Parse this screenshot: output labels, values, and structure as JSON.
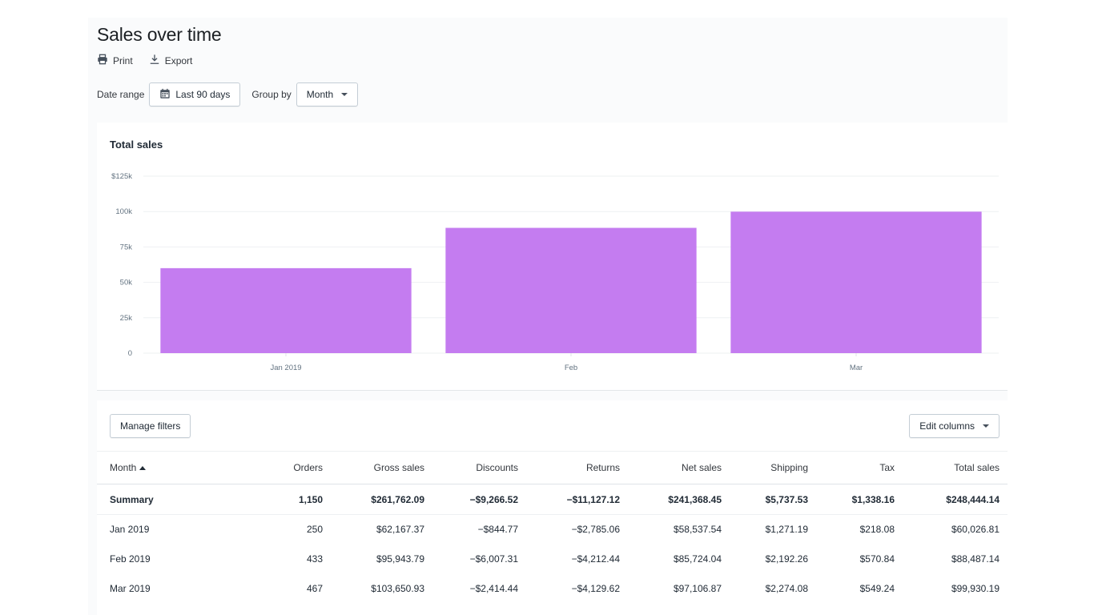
{
  "header": {
    "title": "Sales over time",
    "print_label": "Print",
    "export_label": "Export"
  },
  "filters": {
    "date_range_label": "Date range",
    "date_range_value": "Last 90 days",
    "group_by_label": "Group by",
    "group_by_value": "Month"
  },
  "icons": {
    "print": "printer-icon",
    "export": "download-icon",
    "date": "calendar-icon",
    "dropdown": "caret-down-icon",
    "sort": "sort-ascending-icon"
  },
  "colors": {
    "bar": "#c47cf0",
    "grid": "#eef0f2",
    "text": "#212b36"
  },
  "chart_data": {
    "type": "bar",
    "title": "Total sales",
    "categories": [
      "Jan 2019",
      "Feb",
      "Mar"
    ],
    "values": [
      60026.81,
      88487.14,
      99930.19
    ],
    "y_ticks": [
      "0",
      "25k",
      "50k",
      "75k",
      "100k",
      "$125k"
    ],
    "y_tick_values": [
      0,
      25000,
      50000,
      75000,
      100000,
      125000
    ],
    "ylim": [
      0,
      125000
    ],
    "grid": true
  },
  "table": {
    "manage_filters_label": "Manage filters",
    "edit_columns_label": "Edit columns",
    "columns": [
      "Month",
      "Orders",
      "Gross sales",
      "Discounts",
      "Returns",
      "Net sales",
      "Shipping",
      "Tax",
      "Total sales"
    ],
    "summary": [
      "Summary",
      "1,150",
      "$261,762.09",
      "−$9,266.52",
      "−$11,127.12",
      "$241,368.45",
      "$5,737.53",
      "$1,338.16",
      "$248,444.14"
    ],
    "rows": [
      [
        "Jan 2019",
        "250",
        "$62,167.37",
        "−$844.77",
        "−$2,785.06",
        "$58,537.54",
        "$1,271.19",
        "$218.08",
        "$60,026.81"
      ],
      [
        "Feb 2019",
        "433",
        "$95,943.79",
        "−$6,007.31",
        "−$4,212.44",
        "$85,724.04",
        "$2,192.26",
        "$570.84",
        "$88,487.14"
      ],
      [
        "Mar 2019",
        "467",
        "$103,650.93",
        "−$2,414.44",
        "−$4,129.62",
        "$97,106.87",
        "$2,274.08",
        "$549.24",
        "$99,930.19"
      ]
    ]
  }
}
